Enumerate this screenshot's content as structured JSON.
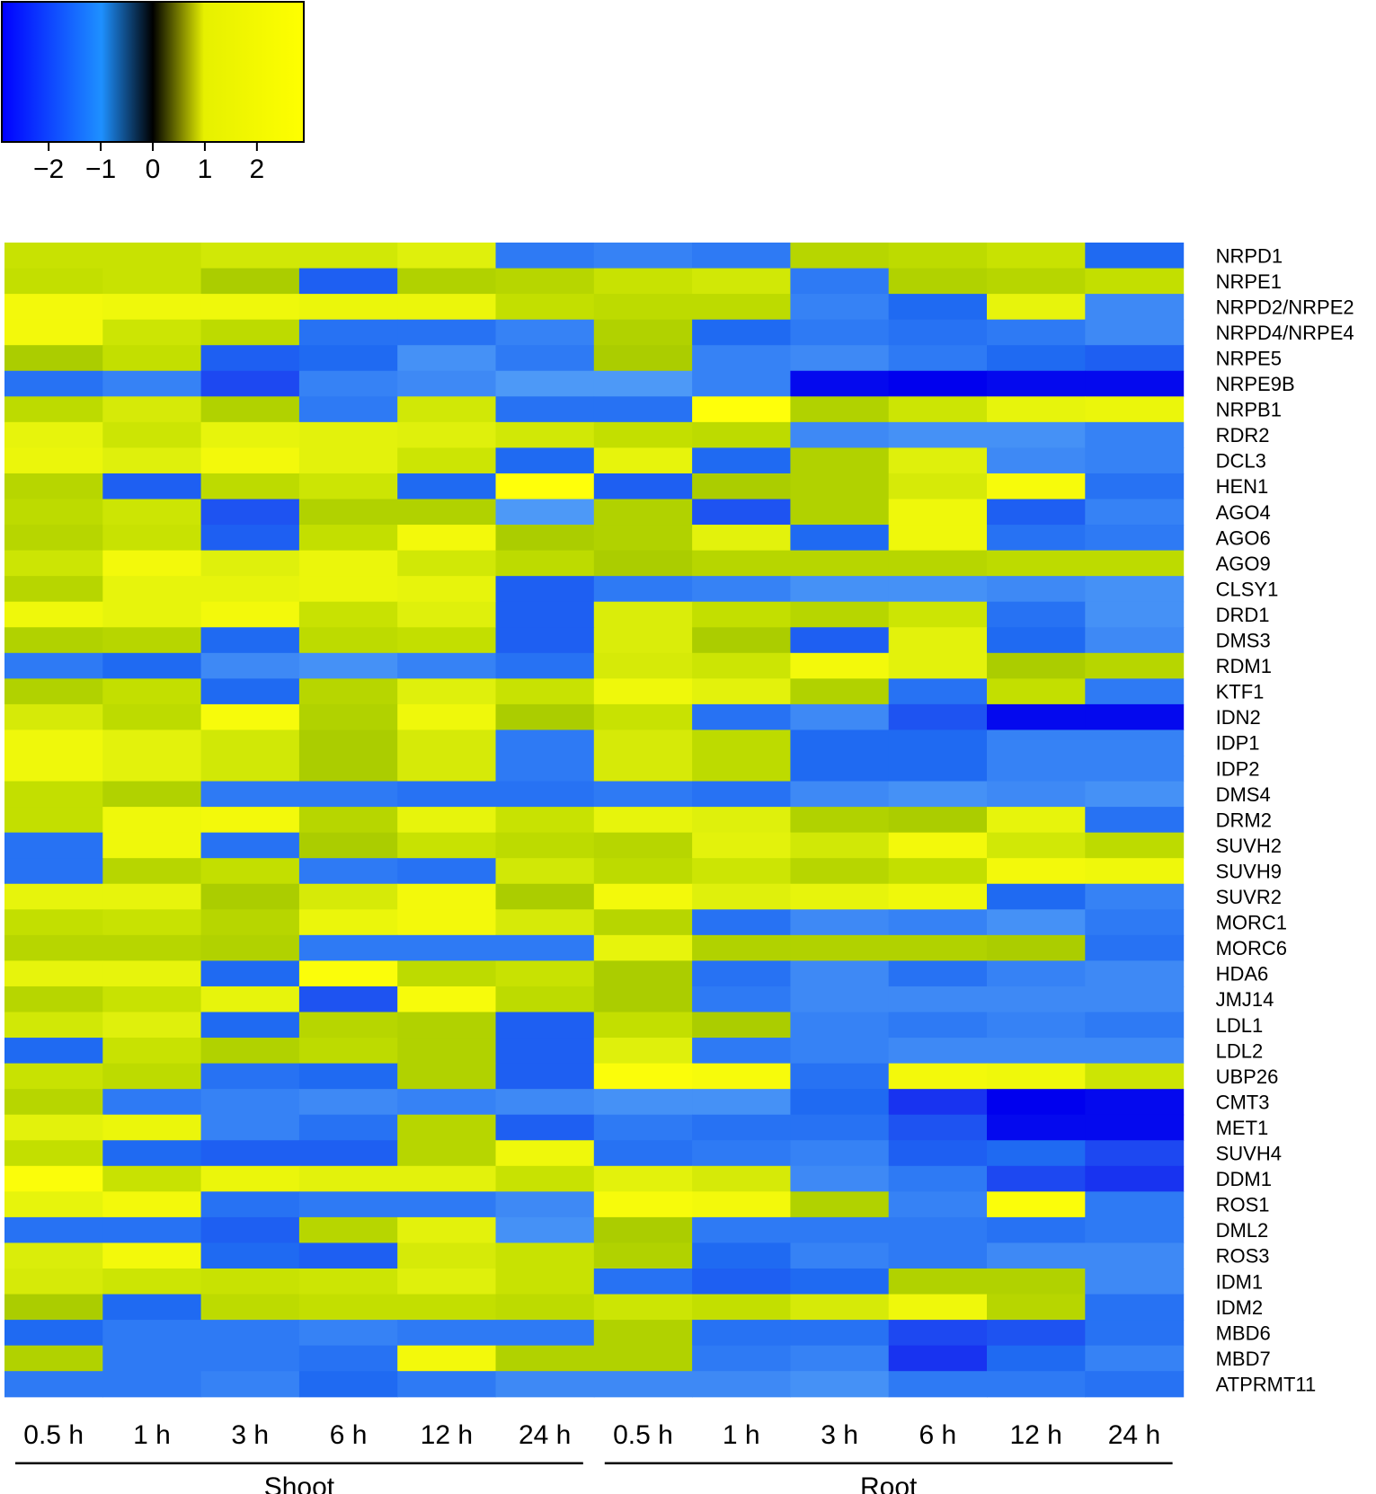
{
  "chart_data": {
    "type": "heatmap",
    "color_key": {
      "ticks": [
        "−2",
        "−1",
        "0",
        "1",
        "2"
      ],
      "tick_values": [
        -2,
        -1,
        0,
        1,
        2
      ],
      "range": [
        -2.9,
        2.9
      ],
      "colors": [
        "#0000ff",
        "#1e90ff",
        "#000000",
        "#e6f000",
        "#ffff00"
      ]
    },
    "columns": [
      "0.5 h",
      "1 h",
      "3 h",
      "6 h",
      "12 h",
      "24 h",
      "0.5 h",
      "1 h",
      "3 h",
      "6 h",
      "12 h",
      "24 h"
    ],
    "groups": [
      {
        "label": "Shoot",
        "columns": [
          0,
          5
        ]
      },
      {
        "label": "Root",
        "columns": [
          6,
          11
        ]
      }
    ],
    "rows": [
      "NRPD1",
      "NRPE1",
      "NRPD2/NRPE2",
      "NRPD4/NRPE4",
      "NRPE5",
      "NRPE9B",
      "NRPB1",
      "RDR2",
      "DCL3",
      "HEN1",
      "AGO4",
      "AGO6",
      "AGO9",
      "CLSY1",
      "DRD1",
      "DMS3",
      "RDM1",
      "KTF1",
      "IDN2",
      "IDP1",
      "IDP2",
      "DMS4",
      "DRM2",
      "SUVH2",
      "SUVH9",
      "SUVR2",
      "MORC1",
      "MORC6",
      "HDA6",
      "JMJ14",
      "LDL1",
      "LDL2",
      "UBP26",
      "CMT3",
      "MET1",
      "SUVH4",
      "DDM1",
      "ROS1",
      "DML2",
      "ROS3",
      "IDM1",
      "IDM2",
      "MBD6",
      "MBD7",
      "ATPRMT11"
    ],
    "values": [
      [
        1.3,
        1.3,
        1.5,
        1.5,
        1.8,
        -1.6,
        -1.5,
        -1.6,
        1.0,
        1.1,
        1.3,
        -1.8
      ],
      [
        1.2,
        1.3,
        0.8,
        -1.9,
        0.9,
        1.0,
        1.3,
        1.5,
        -1.6,
        0.9,
        1.0,
        1.2
      ],
      [
        2.3,
        2.2,
        2.2,
        2.1,
        2.1,
        1.2,
        1.1,
        1.1,
        -1.5,
        -1.8,
        2.0,
        -1.4
      ],
      [
        2.3,
        1.4,
        1.1,
        -1.7,
        -1.7,
        -1.5,
        0.9,
        -1.8,
        -1.6,
        -1.7,
        -1.6,
        -1.4
      ],
      [
        0.8,
        1.2,
        -1.9,
        -1.8,
        -1.3,
        -1.6,
        0.8,
        -1.5,
        -1.4,
        -1.6,
        -1.8,
        -1.9
      ],
      [
        -1.7,
        -1.5,
        -2.1,
        -1.5,
        -1.4,
        -1.1,
        -1.1,
        -1.5,
        -2.8,
        -2.9,
        -2.8,
        -2.8
      ],
      [
        1.1,
        1.6,
        0.9,
        -1.6,
        1.5,
        -1.7,
        -1.7,
        2.6,
        0.9,
        1.4,
        2.0,
        2.1
      ],
      [
        2.0,
        1.4,
        2.0,
        1.9,
        1.8,
        1.5,
        1.2,
        1.1,
        -1.4,
        -1.3,
        -1.3,
        -1.5
      ],
      [
        2.1,
        1.8,
        2.3,
        1.9,
        1.4,
        -1.8,
        2.0,
        -1.8,
        0.9,
        1.8,
        -1.4,
        -1.5
      ],
      [
        1.0,
        -1.9,
        1.1,
        1.4,
        -1.8,
        2.6,
        -1.9,
        0.8,
        0.9,
        1.6,
        2.4,
        -1.7
      ],
      [
        1.1,
        1.4,
        -2.0,
        0.9,
        0.9,
        -1.2,
        0.9,
        -2.0,
        0.9,
        2.2,
        -1.9,
        -1.5
      ],
      [
        1.0,
        1.3,
        -1.9,
        1.2,
        2.3,
        0.8,
        0.9,
        1.9,
        -1.8,
        2.2,
        -1.7,
        -1.6
      ],
      [
        1.4,
        2.3,
        1.8,
        2.1,
        1.5,
        1.1,
        0.8,
        1.0,
        1.0,
        1.0,
        1.1,
        1.1
      ],
      [
        1.0,
        2.0,
        2.0,
        2.1,
        2.0,
        -1.9,
        -1.6,
        -1.5,
        -1.3,
        -1.3,
        -1.4,
        -1.3
      ],
      [
        2.2,
        2.0,
        2.3,
        1.3,
        1.8,
        -1.9,
        1.7,
        1.2,
        1.0,
        1.4,
        -1.7,
        -1.3
      ],
      [
        0.9,
        1.0,
        -1.8,
        1.1,
        1.2,
        -1.9,
        1.7,
        0.8,
        -1.9,
        1.9,
        -1.8,
        -1.4
      ],
      [
        -1.6,
        -1.8,
        -1.4,
        -1.3,
        -1.5,
        -1.7,
        1.6,
        1.4,
        2.3,
        1.9,
        0.8,
        1.0
      ],
      [
        0.9,
        1.2,
        -1.8,
        1.0,
        1.8,
        1.3,
        2.2,
        1.9,
        0.9,
        -1.7,
        1.2,
        -1.6
      ],
      [
        1.6,
        1.1,
        2.4,
        0.9,
        2.2,
        0.8,
        1.3,
        -1.7,
        -1.4,
        -2.0,
        -2.8,
        -2.8
      ],
      [
        2.2,
        1.9,
        1.5,
        0.8,
        1.6,
        -1.6,
        1.6,
        1.1,
        -1.8,
        -1.8,
        -1.5,
        -1.5
      ],
      [
        2.2,
        1.9,
        1.5,
        0.8,
        1.6,
        -1.6,
        1.6,
        1.1,
        -1.8,
        -1.8,
        -1.5,
        -1.5
      ],
      [
        1.2,
        0.9,
        -1.6,
        -1.6,
        -1.7,
        -1.7,
        -1.6,
        -1.7,
        -1.4,
        -1.3,
        -1.4,
        -1.3
      ],
      [
        1.2,
        2.2,
        2.3,
        1.0,
        2.0,
        1.3,
        2.0,
        1.8,
        0.9,
        0.8,
        2.0,
        -1.7
      ],
      [
        -1.7,
        2.2,
        -1.7,
        0.8,
        1.3,
        1.1,
        1.0,
        1.9,
        1.5,
        2.3,
        1.5,
        1.1
      ],
      [
        -1.7,
        1.0,
        1.2,
        -1.6,
        -1.7,
        1.5,
        1.1,
        1.4,
        1.0,
        1.2,
        2.3,
        2.2
      ],
      [
        2.0,
        2.0,
        0.8,
        1.6,
        2.3,
        0.8,
        2.3,
        1.8,
        2.0,
        2.2,
        -1.8,
        -1.5
      ],
      [
        1.2,
        1.3,
        1.0,
        2.1,
        2.3,
        1.6,
        1.0,
        -1.7,
        -1.4,
        -1.5,
        -1.3,
        -1.6
      ],
      [
        1.0,
        1.0,
        0.9,
        -1.6,
        -1.6,
        -1.6,
        2.0,
        0.9,
        0.9,
        0.9,
        0.8,
        -1.7
      ],
      [
        2.0,
        2.0,
        -1.8,
        2.5,
        1.1,
        1.3,
        0.8,
        -1.7,
        -1.4,
        -1.7,
        -1.5,
        -1.4
      ],
      [
        1.0,
        1.3,
        2.0,
        -2.0,
        2.4,
        1.1,
        0.8,
        -1.6,
        -1.4,
        -1.4,
        -1.4,
        -1.4
      ],
      [
        1.5,
        1.8,
        -1.8,
        1.0,
        0.9,
        -1.9,
        1.2,
        0.8,
        -1.5,
        -1.6,
        -1.5,
        -1.6
      ],
      [
        -1.8,
        1.3,
        0.9,
        1.1,
        0.9,
        -1.9,
        1.8,
        -1.6,
        -1.5,
        -1.4,
        -1.4,
        -1.4
      ],
      [
        1.3,
        1.1,
        -1.7,
        -1.8,
        0.9,
        -1.9,
        2.5,
        2.4,
        -1.7,
        2.3,
        2.2,
        1.4
      ],
      [
        1.0,
        -1.6,
        -1.5,
        -1.4,
        -1.5,
        -1.4,
        -1.3,
        -1.3,
        -1.8,
        -2.3,
        -2.9,
        -2.8
      ],
      [
        1.9,
        2.1,
        -1.5,
        -1.7,
        1.0,
        -1.9,
        -1.6,
        -1.7,
        -1.7,
        -2.0,
        -2.8,
        -2.8
      ],
      [
        1.2,
        -1.8,
        -1.9,
        -1.9,
        1.0,
        2.2,
        -1.7,
        -1.6,
        -1.5,
        -1.9,
        -1.8,
        -2.1
      ],
      [
        2.5,
        1.3,
        2.1,
        1.9,
        1.9,
        1.3,
        1.9,
        1.6,
        -1.4,
        -1.6,
        -2.1,
        -2.3
      ],
      [
        2.0,
        2.3,
        -1.7,
        -1.6,
        -1.6,
        -1.4,
        2.4,
        2.3,
        0.9,
        -1.5,
        2.5,
        -1.6
      ],
      [
        -1.7,
        -1.7,
        -1.9,
        1.0,
        1.9,
        -1.3,
        0.8,
        -1.6,
        -1.6,
        -1.6,
        -1.7,
        -1.6
      ],
      [
        1.7,
        2.3,
        -1.8,
        -1.9,
        1.6,
        1.3,
        0.9,
        -1.8,
        -1.5,
        -1.6,
        -1.4,
        -1.4
      ],
      [
        1.6,
        1.4,
        1.3,
        1.4,
        1.8,
        1.3,
        -1.7,
        -1.9,
        -1.8,
        0.9,
        0.9,
        -1.4
      ],
      [
        0.8,
        -1.8,
        1.1,
        1.2,
        1.2,
        1.1,
        1.4,
        1.2,
        1.6,
        2.2,
        1.0,
        -1.7
      ],
      [
        -1.8,
        -1.6,
        -1.6,
        -1.5,
        -1.6,
        -1.6,
        0.9,
        -1.7,
        -1.7,
        -2.1,
        -2.0,
        -1.7
      ],
      [
        0.9,
        -1.6,
        -1.6,
        -1.7,
        2.3,
        0.9,
        0.9,
        -1.6,
        -1.5,
        -2.3,
        -1.8,
        -1.5
      ],
      [
        -1.6,
        -1.6,
        -1.5,
        -1.8,
        -1.6,
        -1.4,
        -1.4,
        -1.4,
        -1.3,
        -1.6,
        -1.6,
        -1.7
      ]
    ]
  }
}
